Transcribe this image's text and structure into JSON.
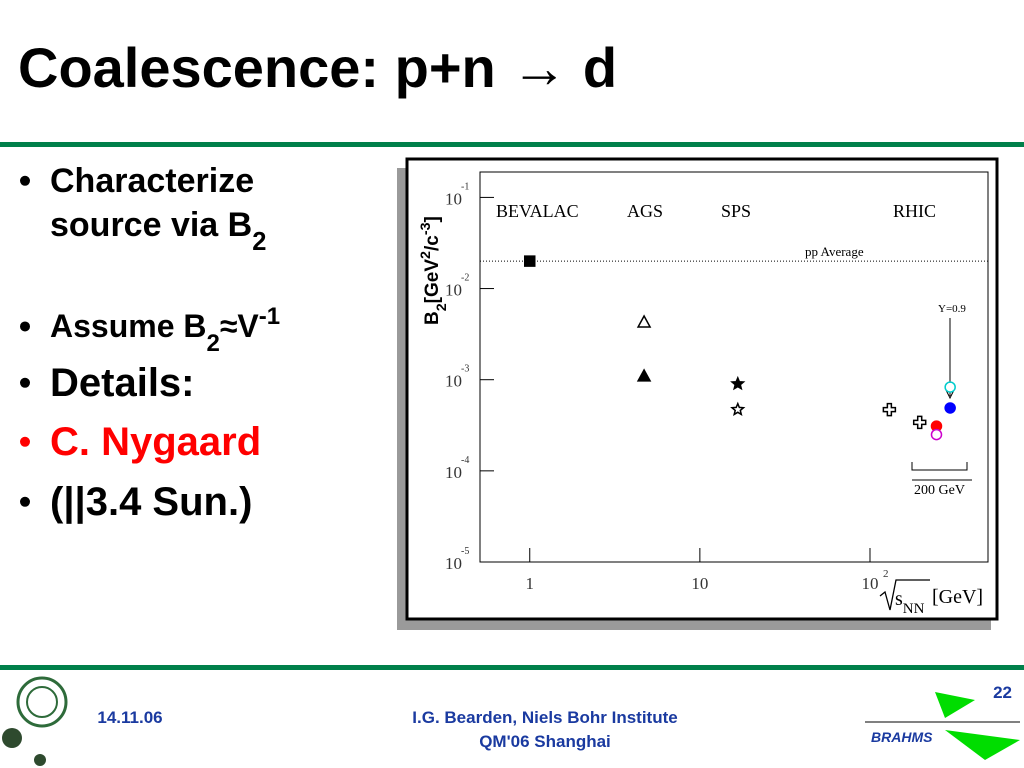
{
  "slide": {
    "title": "Coalescence: p+n → d",
    "bullets": [
      {
        "color": "#000000",
        "lines": [
          [
            {
              "t": "Characterize"
            }
          ],
          [
            {
              "t": "source via B"
            },
            {
              "t": "2",
              "s": "sub"
            }
          ]
        ]
      },
      {
        "color": "#000000",
        "lines": [
          [
            {
              "t": "Assume B"
            },
            {
              "t": "2",
              "s": "sub"
            },
            {
              "t": "≈V"
            },
            {
              "t": "-1",
              "s": "sup"
            }
          ]
        ]
      },
      {
        "color": "#000000",
        "lines": [
          [
            {
              "t": "Details:"
            }
          ]
        ]
      },
      {
        "color": "#ff0000",
        "lines": [
          [
            {
              "t": "C. Nygaard"
            }
          ]
        ]
      },
      {
        "color": "#000000",
        "lines": [
          [
            {
              "t": "(||3.4 Sun.)"
            }
          ]
        ]
      }
    ],
    "footer": {
      "date": "14.11.06",
      "author": "I.G. Bearden, Niels Bohr Institute",
      "event": "QM'06 Shanghai",
      "page": "22",
      "logo": "BRAHMS"
    }
  },
  "chart_data": {
    "type": "scatter",
    "log_x": true,
    "log_y": true,
    "xlim": [
      0.51,
      494
    ],
    "ylim": [
      1e-05,
      0.19
    ],
    "xticks": [
      {
        "value": 1,
        "label": "1"
      },
      {
        "value": 10,
        "label": "10"
      },
      {
        "value": 100,
        "label": "10",
        "exponent": "2"
      }
    ],
    "yticks": [
      {
        "value": 0.1,
        "label": "10",
        "exponent": "-1"
      },
      {
        "value": 0.01,
        "label": "10",
        "exponent": "-2"
      },
      {
        "value": 0.001,
        "label": "10",
        "exponent": "-3"
      },
      {
        "value": 0.0001,
        "label": "10",
        "exponent": "-4"
      },
      {
        "value": 1e-05,
        "label": "10",
        "exponent": "-5"
      }
    ],
    "x_label": {
      "main": "s",
      "sub": "NN",
      "unit": "[GeV]"
    },
    "y_label": {
      "main": "B",
      "sub": "2",
      "unit1": "[GeV",
      "sup1": "2",
      "unit2": "/c",
      "sup2": "-3",
      "unit3": "]"
    },
    "reference_line": {
      "value": 0.02,
      "label": "pp Average"
    },
    "annotations": [
      "BEVALAC",
      "AGS",
      "SPS",
      "RHIC",
      "Y=0.9",
      "200 GeV"
    ],
    "series": [
      {
        "marker": "square",
        "filled": true,
        "color": "#000000",
        "x": [
          1
        ],
        "values": [
          0.02
        ]
      },
      {
        "marker": "triangle",
        "filled": false,
        "color": "#000000",
        "x": [
          4.7
        ],
        "values": [
          0.0043
        ]
      },
      {
        "marker": "triangle",
        "filled": true,
        "color": "#000000",
        "x": [
          4.7
        ],
        "values": [
          0.0011
        ]
      },
      {
        "marker": "star",
        "filled": true,
        "color": "#000000",
        "x": [
          16.7
        ],
        "values": [
          0.0009
        ]
      },
      {
        "marker": "star",
        "filled": false,
        "color": "#000000",
        "x": [
          16.7
        ],
        "values": [
          0.00047
        ]
      },
      {
        "marker": "cross",
        "filled": false,
        "color": "#000000",
        "x": [
          130,
          196
        ],
        "values": [
          0.00047,
          0.00034
        ]
      },
      {
        "marker": "circle",
        "filled": true,
        "color": "#ff0000",
        "x": [
          246
        ],
        "values": [
          0.00031
        ]
      },
      {
        "marker": "circle",
        "filled": false,
        "color": "#cc00cc",
        "x": [
          246
        ],
        "values": [
          0.00025
        ]
      },
      {
        "marker": "circle",
        "filled": false,
        "color": "#00cccc",
        "x": [
          296
        ],
        "values": [
          0.00083
        ]
      },
      {
        "marker": "circle",
        "filled": true,
        "color": "#0000ff",
        "x": [
          296
        ],
        "values": [
          0.00049
        ]
      }
    ]
  }
}
